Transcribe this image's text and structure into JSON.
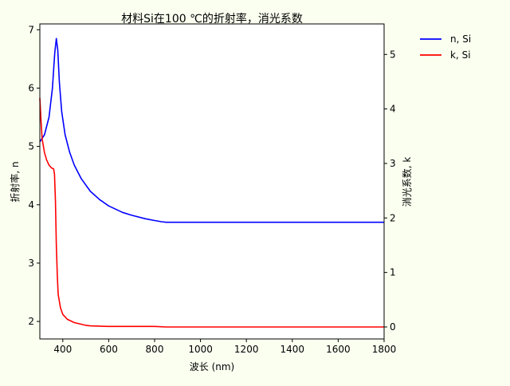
{
  "chart_data": {
    "type": "line",
    "title": "材料Si在100 ℃的折射率，消光系数",
    "xlabel": "波长 (nm)",
    "ylabel_left": "折射率, n",
    "ylabel_right": "消光系数, k",
    "xlim": [
      300,
      1800
    ],
    "ylim_left": [
      1.7,
      7.1
    ],
    "ylim_right": [
      -0.22,
      5.56
    ],
    "x_ticks": [
      400,
      600,
      800,
      1000,
      1200,
      1400,
      1600,
      1800
    ],
    "y_left_ticks": [
      2,
      3,
      4,
      5,
      6,
      7
    ],
    "y_right_ticks": [
      0,
      1,
      2,
      3,
      4,
      5
    ],
    "grid": false,
    "legend_position": "top-right, outside plot",
    "series": [
      {
        "name": "n, Si",
        "axis": "left",
        "color": "#0000ff",
        "x": [
          300,
          320,
          340,
          355,
          365,
          372,
          378,
          385,
          395,
          410,
          430,
          450,
          480,
          520,
          560,
          600,
          660,
          700,
          760,
          800,
          830,
          850,
          900,
          1000,
          1200,
          1400,
          1600,
          1800
        ],
        "y": [
          5.08,
          5.2,
          5.5,
          6.0,
          6.6,
          6.85,
          6.65,
          6.1,
          5.6,
          5.2,
          4.9,
          4.68,
          4.45,
          4.23,
          4.09,
          3.98,
          3.87,
          3.82,
          3.76,
          3.73,
          3.71,
          3.7,
          3.7,
          3.7,
          3.7,
          3.7,
          3.7,
          3.7
        ]
      },
      {
        "name": "k, Si",
        "axis": "right",
        "color": "#ff0000",
        "x": [
          300,
          305,
          310,
          320,
          330,
          340,
          350,
          360,
          364,
          368,
          372,
          376,
          380,
          390,
          400,
          420,
          450,
          480,
          500,
          520,
          600,
          700,
          800,
          850,
          1000,
          1200,
          1400,
          1600,
          1800
        ],
        "y": [
          4.2,
          3.8,
          3.45,
          3.2,
          3.06,
          2.97,
          2.92,
          2.9,
          2.8,
          2.3,
          1.5,
          0.95,
          0.6,
          0.35,
          0.23,
          0.14,
          0.08,
          0.05,
          0.03,
          0.02,
          0.01,
          0.01,
          0.01,
          0.0,
          0.0,
          0.0,
          0.0,
          0.0,
          0.0
        ]
      }
    ]
  }
}
